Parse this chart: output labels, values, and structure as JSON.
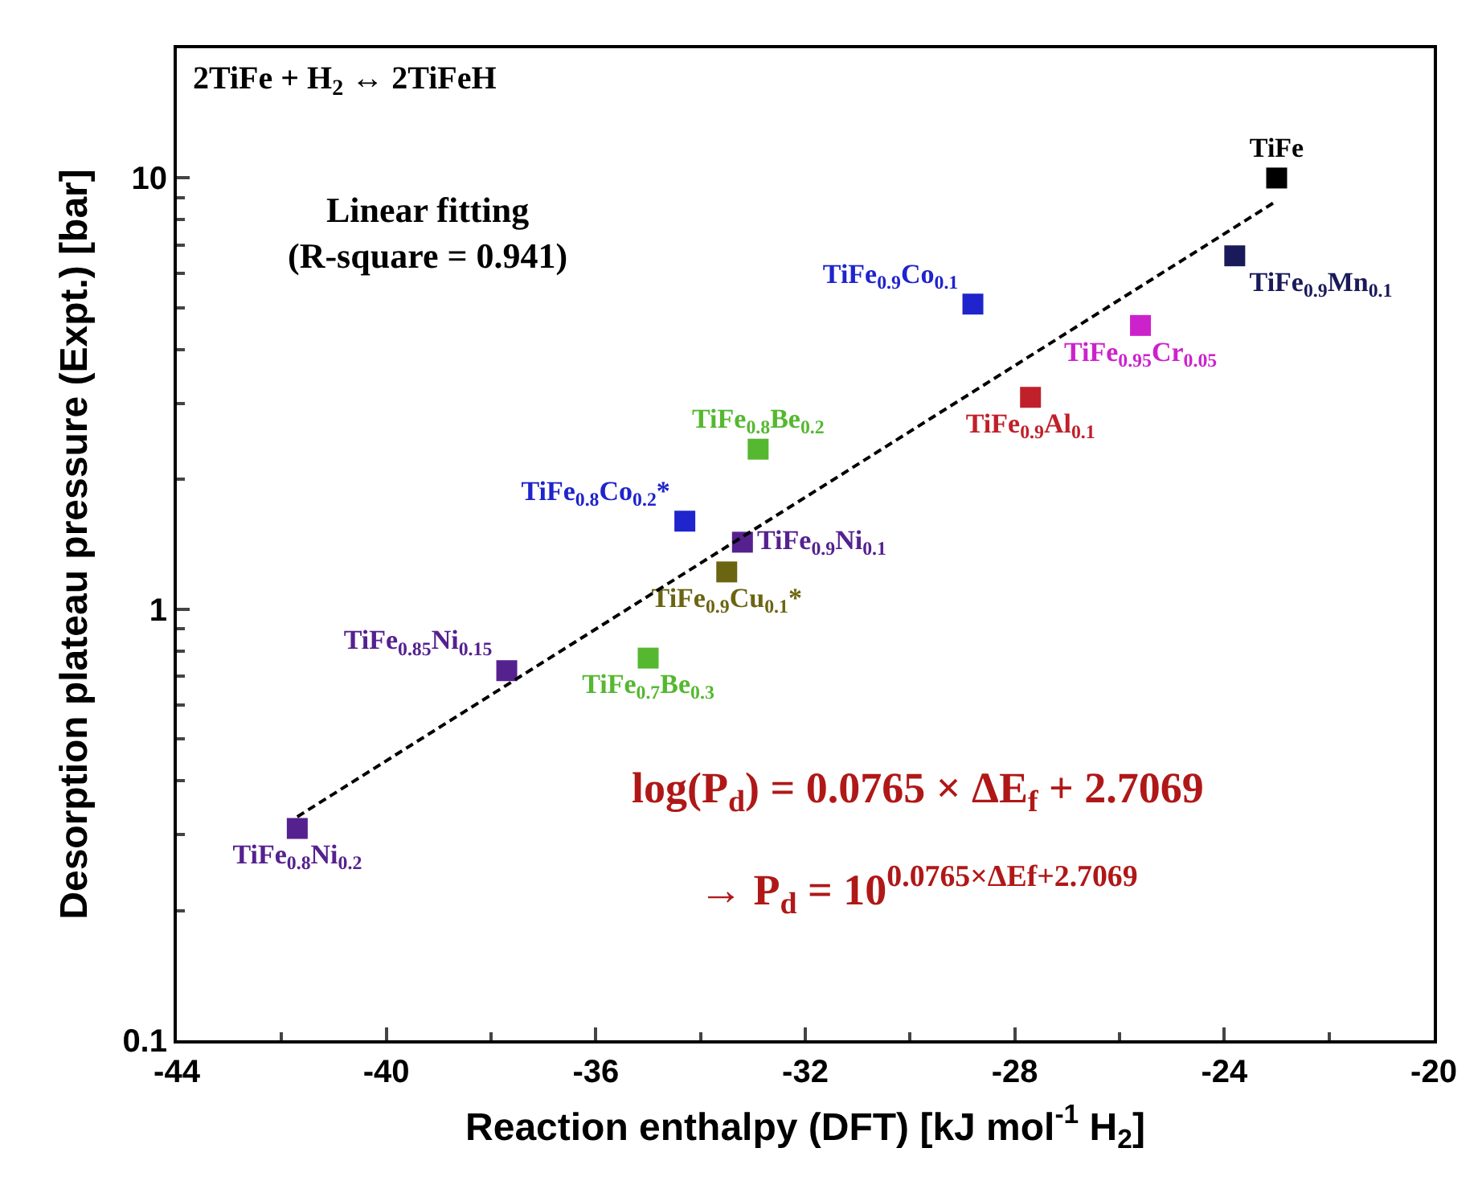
{
  "chart_data": {
    "type": "scatter",
    "xlabel": "Reaction enthalpy (DFT) [kJ mol$^{-1}$ H$_{2}$]",
    "ylabel": "Desorption plateau pressure (Expt.) [bar]",
    "log": "y",
    "xlim": [
      -44,
      -20
    ],
    "xticks": [
      -44,
      -40,
      -36,
      -32,
      -28,
      -24,
      -20
    ],
    "ylim": [
      0.1,
      20
    ],
    "yticks": [
      0.1,
      1,
      10
    ],
    "legend": false,
    "marker": "square",
    "annotations": [
      "2TiFe + H$_{2}$ ↔ 2TiFeH",
      "Linear fitting\n(R-square = 0.941)",
      "log(P$_{d}$) = 0.0765 × ΔE$_{f}$ + 2.7069",
      "→ P$_{d}$ = 10$^{0.0765×ΔEf+2.7069}$"
    ],
    "series": [
      {
        "name": "TiFe",
        "color": "#000000",
        "x": [
          -23.0
        ],
        "values": [
          10
        ]
      },
      {
        "name": "TiFe$_{0.9}$Mn$_{0.1}$",
        "color": "#1a1a5a",
        "x": [
          -23.8
        ],
        "values": [
          6.6
        ]
      },
      {
        "name": "TiFe$_{0.95}$Cr$_{0.05}$",
        "color": "#cc22cc",
        "x": [
          -25.6
        ],
        "values": [
          4.55
        ]
      },
      {
        "name": "TiFe$_{0.9}$Co$_{0.1}$",
        "color": "#1f24cc",
        "x": [
          -28.8
        ],
        "values": [
          5.1
        ]
      },
      {
        "name": "TiFe$_{0.9}$Al$_{0.1}$",
        "color": "#c0202a",
        "x": [
          -27.7
        ],
        "values": [
          3.1
        ]
      },
      {
        "name": "TiFe$_{0.8}$Be$_{0.2}$",
        "color": "#55b830",
        "x": [
          -32.9
        ],
        "values": [
          2.35
        ]
      },
      {
        "name": "TiFe$_{0.8}$Co$_{0.2}$*",
        "color": "#1f24cc",
        "x": [
          -34.3
        ],
        "values": [
          1.6
        ]
      },
      {
        "name": "TiFe$_{0.9}$Ni$_{0.1}$",
        "color": "#55218f",
        "x": [
          -33.2
        ],
        "values": [
          1.43
        ]
      },
      {
        "name": "TiFe$_{0.9}$Cu$_{0.1}$*",
        "color": "#6b6512",
        "x": [
          -33.5
        ],
        "values": [
          1.22
        ]
      },
      {
        "name": "TiFe$_{0.85}$Ni$_{0.15}$",
        "color": "#55218f",
        "x": [
          -37.7
        ],
        "values": [
          0.72
        ]
      },
      {
        "name": "TiFe$_{0.7}$Be$_{0.3}$",
        "color": "#55b830",
        "x": [
          -35.0
        ],
        "values": [
          0.77
        ]
      },
      {
        "name": "TiFe$_{0.8}$Ni$_{0.2}$",
        "color": "#55218f",
        "x": [
          -41.7
        ],
        "values": [
          0.31
        ]
      },
      {
        "type": "line",
        "color": "#000000",
        "line_style": "dashed",
        "marker": "none",
        "x": [
          -41.7,
          -23.0
        ],
        "values": [
          0.33,
          8.85
        ]
      }
    ]
  }
}
